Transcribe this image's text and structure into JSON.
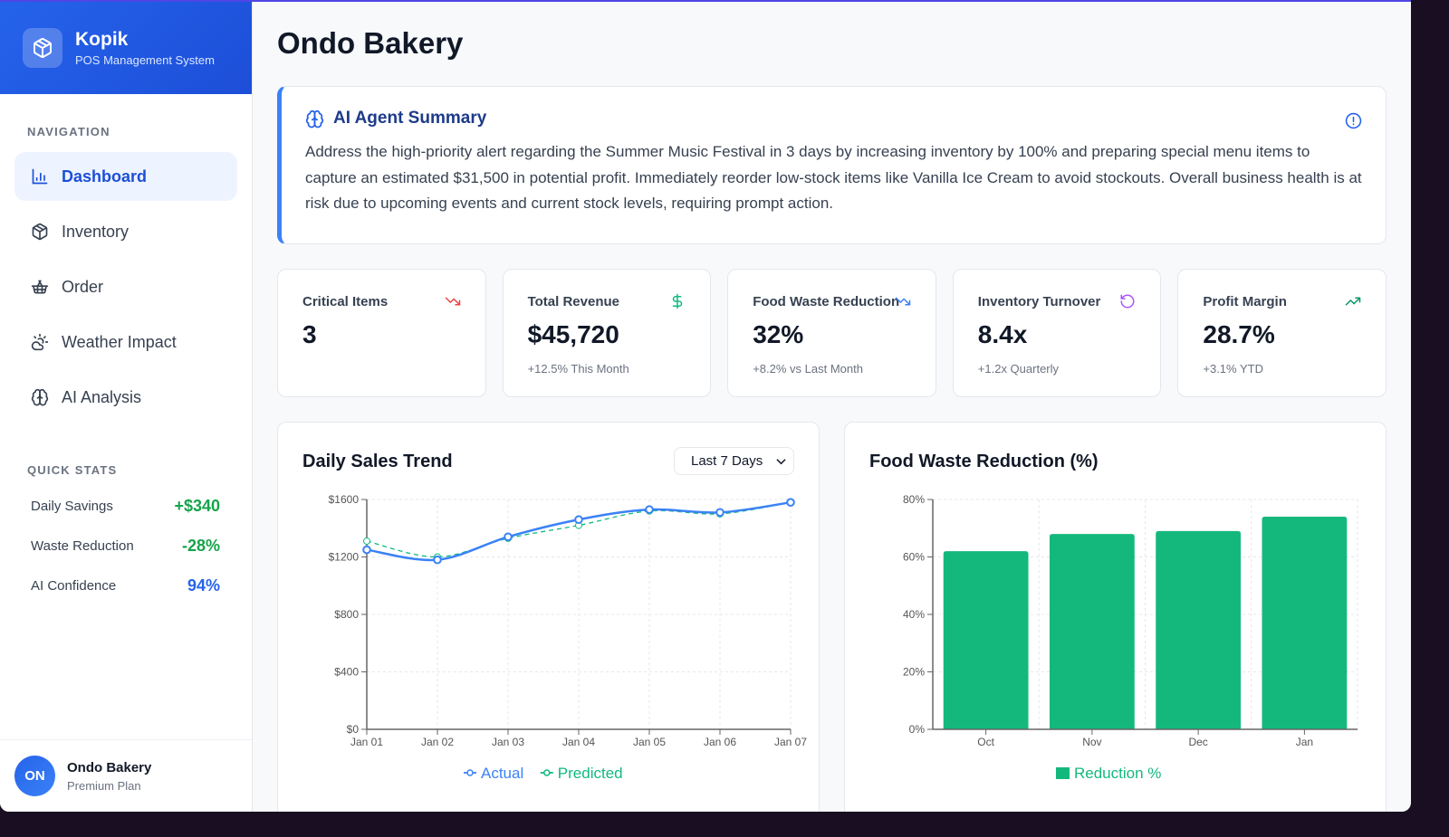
{
  "brand": {
    "title": "Kopik",
    "subtitle": "POS Management System"
  },
  "sidebar": {
    "nav_label": "NAVIGATION",
    "items": [
      {
        "label": "Dashboard",
        "icon": "bar-chart-icon",
        "active": true
      },
      {
        "label": "Inventory",
        "icon": "box-icon"
      },
      {
        "label": "Order",
        "icon": "basket-icon"
      },
      {
        "label": "Weather Impact",
        "icon": "cloud-sun-icon"
      },
      {
        "label": "AI Analysis",
        "icon": "brain-icon"
      }
    ],
    "quick_label": "QUICK STATS",
    "quick_stats": [
      {
        "label": "Daily Savings",
        "value": "+$340",
        "color": "#16a34a"
      },
      {
        "label": "Waste Reduction",
        "value": "-28%",
        "color": "#16a34a"
      },
      {
        "label": "AI Confidence",
        "value": "94%",
        "color": "#2563eb"
      }
    ],
    "profile": {
      "initials": "ON",
      "name": "Ondo Bakery",
      "plan": "Premium Plan"
    }
  },
  "main": {
    "title": "Ondo Bakery",
    "summary": {
      "title": "AI Agent Summary",
      "text": "Address the high-priority alert regarding the Summer Music Festival in 3 days by increasing inventory by 100% and preparing special menu items to capture an estimated $31,500 in potential profit. Immediately reorder low-stock items like Vanilla Ice Cream to avoid stockouts. Overall business health is at risk due to upcoming events and current stock levels, requiring prompt action."
    },
    "kpis": [
      {
        "title": "Critical Items",
        "value": "3",
        "sub": "",
        "icon": "trending-down-icon",
        "color": "#ef4444"
      },
      {
        "title": "Total Revenue",
        "value": "$45,720",
        "sub": "+12.5% This Month",
        "icon": "dollar-icon",
        "color": "#10b981"
      },
      {
        "title": "Food Waste Reduction",
        "value": "32%",
        "sub": "+8.2% vs Last Month",
        "icon": "trending-down-icon",
        "color": "#3b82f6"
      },
      {
        "title": "Inventory Turnover",
        "value": "8.4x",
        "sub": "+1.2x Quarterly",
        "icon": "refresh-icon",
        "color": "#a855f7"
      },
      {
        "title": "Profit Margin",
        "value": "28.7%",
        "sub": "+3.1% YTD",
        "icon": "trending-up-icon",
        "color": "#059669"
      }
    ],
    "sales_card": {
      "title": "Daily Sales Trend",
      "range_select": "Last 7 Days"
    },
    "waste_card": {
      "title": "Food Waste Reduction (%)"
    }
  },
  "chart_data": [
    {
      "type": "line",
      "title": "Daily Sales Trend",
      "x": [
        "Jan 01",
        "Jan 02",
        "Jan 03",
        "Jan 04",
        "Jan 05",
        "Jan 06",
        "Jan 07"
      ],
      "yticks": [
        "$0",
        "$400",
        "$800",
        "$1200",
        "$1600"
      ],
      "ylim": [
        0,
        1600
      ],
      "grid": true,
      "legend": "bottom",
      "series": [
        {
          "name": "Actual",
          "color": "#3b82f6",
          "style": "solid",
          "values": [
            1250,
            1180,
            1340,
            1460,
            1530,
            1510,
            1580
          ]
        },
        {
          "name": "Predicted",
          "color": "#10b981",
          "style": "dashed",
          "values": [
            1310,
            1200,
            1330,
            1420,
            1520,
            1500,
            1580
          ]
        }
      ]
    },
    {
      "type": "bar",
      "title": "Food Waste Reduction (%)",
      "categories": [
        "Oct",
        "Nov",
        "Dec",
        "Jan"
      ],
      "yticks": [
        "0%",
        "20%",
        "40%",
        "60%",
        "80%"
      ],
      "ylim": [
        0,
        80
      ],
      "grid": true,
      "legend": "bottom",
      "series": [
        {
          "name": "Reduction %",
          "color": "#14b87d",
          "values": [
            62,
            68,
            69,
            74
          ]
        }
      ]
    }
  ]
}
